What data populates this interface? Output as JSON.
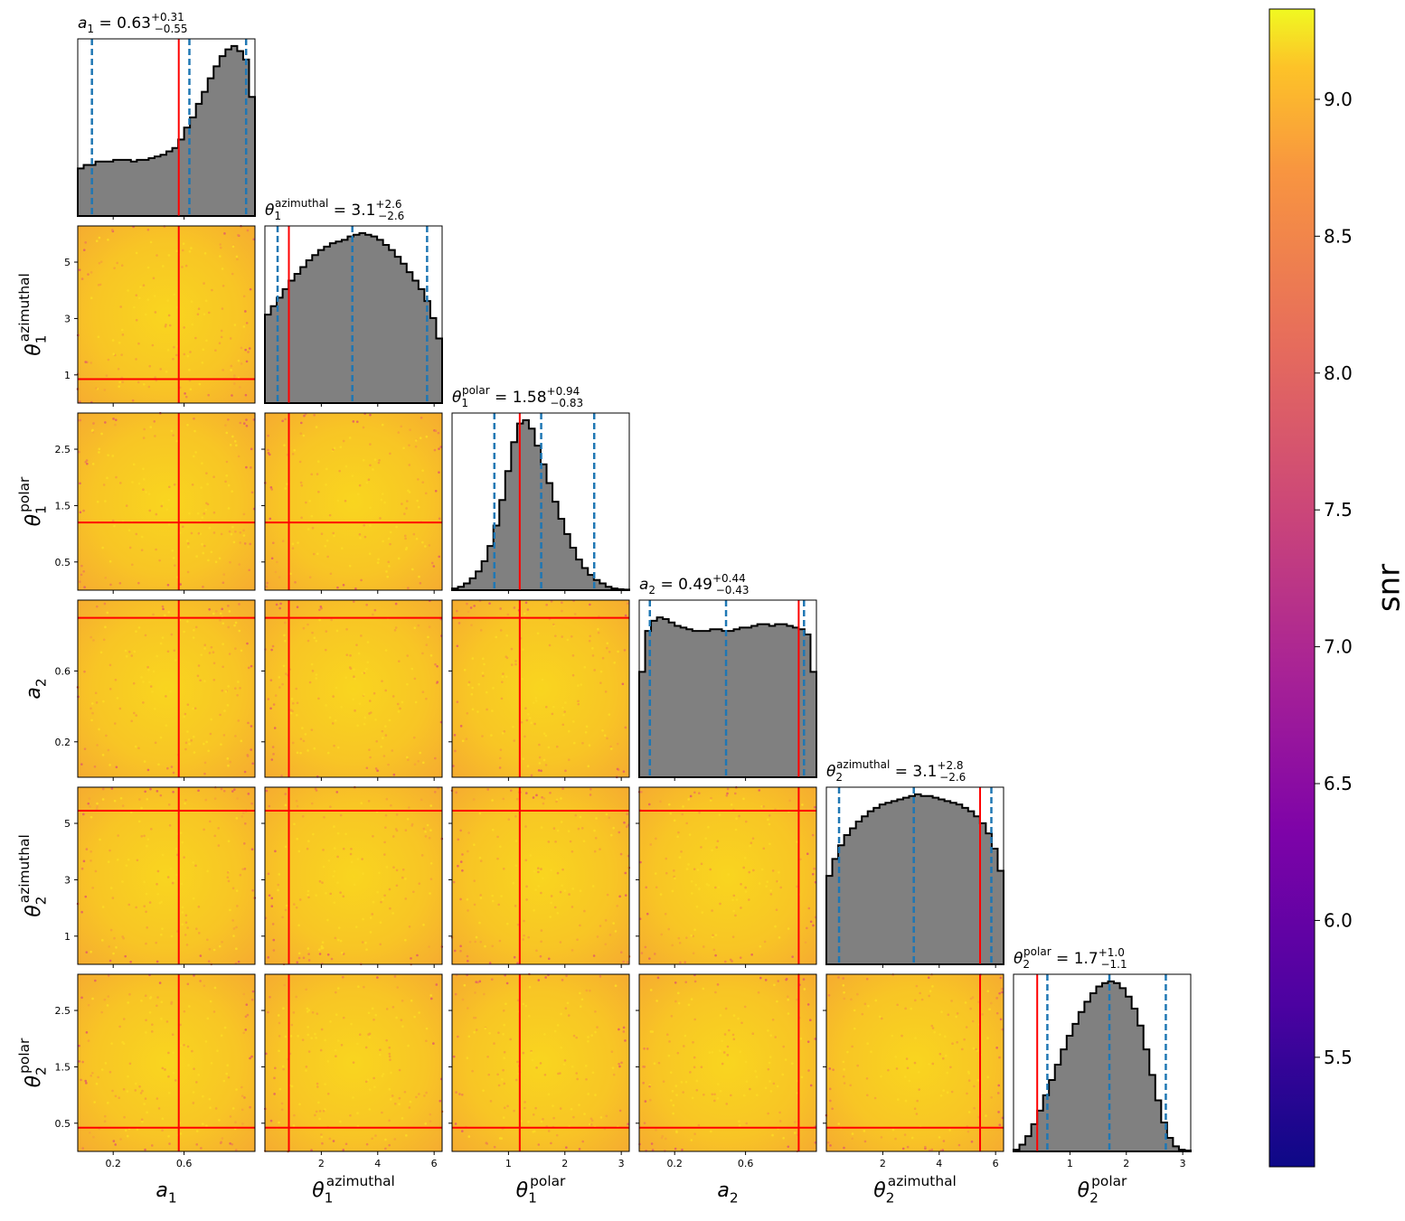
{
  "chart_data": {
    "type": "scatter",
    "subtype": "corner plot (1D histograms on diagonal, 2D scatter coloured by snr below diagonal)",
    "parameters": [
      {
        "sym": "a",
        "sub": "1",
        "sup": "",
        "range": [
          0,
          1
        ],
        "ticks": [
          0.2,
          0.6
        ],
        "title_value": "0.63",
        "title_plus": "+0.31",
        "title_minus": "−0.55",
        "truth": 0.57,
        "quantiles": [
          0.08,
          0.63,
          0.95
        ]
      },
      {
        "sym": "θ",
        "sub": "1",
        "sup": "azimuthal",
        "range": [
          0,
          6.283
        ],
        "ticks": [
          1,
          3,
          5
        ],
        "xticks": [
          2,
          4,
          6
        ],
        "title_value": "3.1",
        "title_plus": "+2.6",
        "title_minus": "−2.6",
        "truth": 0.85,
        "quantiles": [
          0.45,
          3.1,
          5.75
        ]
      },
      {
        "sym": "θ",
        "sub": "1",
        "sup": "polar",
        "range": [
          0,
          3.1416
        ],
        "ticks": [
          0.5,
          1.5,
          2.5
        ],
        "xticks": [
          1,
          2,
          3
        ],
        "title_value": "1.58",
        "title_plus": "+0.94",
        "title_minus": "−0.83",
        "truth": 1.2,
        "quantiles": [
          0.75,
          1.58,
          2.52
        ]
      },
      {
        "sym": "a",
        "sub": "2",
        "sup": "",
        "range": [
          0,
          1
        ],
        "ticks": [
          0.2,
          0.6
        ],
        "title_value": "0.49",
        "title_plus": "+0.44",
        "title_minus": "−0.43",
        "truth": 0.9,
        "quantiles": [
          0.06,
          0.49,
          0.93
        ]
      },
      {
        "sym": "θ",
        "sub": "2",
        "sup": "azimuthal",
        "range": [
          0,
          6.283
        ],
        "ticks": [
          1,
          3,
          5
        ],
        "xticks": [
          2,
          4,
          6
        ],
        "title_value": "3.1",
        "title_plus": "+2.8",
        "title_minus": "−2.6",
        "truth": 5.45,
        "quantiles": [
          0.45,
          3.1,
          5.85
        ]
      },
      {
        "sym": "θ",
        "sub": "2",
        "sup": "polar",
        "range": [
          0,
          3.1416
        ],
        "ticks": [
          0.5,
          1.5,
          2.5
        ],
        "xticks": [
          1,
          2,
          3
        ],
        "title_value": "1.7",
        "title_plus": "+1.0",
        "title_minus": "−1.1",
        "truth": 0.42,
        "quantiles": [
          0.6,
          1.7,
          2.7
        ]
      }
    ],
    "histograms": [
      [
        0.28,
        0.3,
        0.3,
        0.32,
        0.32,
        0.32,
        0.33,
        0.33,
        0.33,
        0.32,
        0.33,
        0.33,
        0.34,
        0.35,
        0.36,
        0.38,
        0.4,
        0.45,
        0.52,
        0.58,
        0.66,
        0.73,
        0.81,
        0.88,
        0.94,
        0.98,
        1.0,
        0.97,
        0.92,
        0.7
      ],
      [
        0.52,
        0.57,
        0.62,
        0.67,
        0.72,
        0.76,
        0.8,
        0.84,
        0.87,
        0.9,
        0.92,
        0.94,
        0.95,
        0.96,
        0.98,
        0.99,
        1.0,
        0.99,
        0.98,
        0.96,
        0.93,
        0.9,
        0.86,
        0.82,
        0.77,
        0.72,
        0.67,
        0.6,
        0.5,
        0.38
      ],
      [
        0.01,
        0.02,
        0.04,
        0.07,
        0.11,
        0.17,
        0.26,
        0.38,
        0.53,
        0.7,
        0.87,
        0.98,
        1.0,
        0.95,
        0.85,
        0.74,
        0.63,
        0.52,
        0.42,
        0.33,
        0.25,
        0.18,
        0.13,
        0.09,
        0.06,
        0.04,
        0.02,
        0.01,
        0.005,
        0.003
      ],
      [
        0.62,
        0.86,
        0.92,
        0.94,
        0.93,
        0.91,
        0.89,
        0.88,
        0.87,
        0.86,
        0.86,
        0.86,
        0.87,
        0.87,
        0.86,
        0.86,
        0.87,
        0.88,
        0.88,
        0.89,
        0.9,
        0.9,
        0.89,
        0.9,
        0.9,
        0.89,
        0.88,
        0.87,
        0.84,
        0.62
      ],
      [
        0.52,
        0.62,
        0.7,
        0.76,
        0.8,
        0.84,
        0.87,
        0.9,
        0.92,
        0.94,
        0.95,
        0.96,
        0.97,
        0.98,
        0.99,
        1.0,
        0.99,
        0.99,
        0.98,
        0.97,
        0.96,
        0.95,
        0.94,
        0.92,
        0.9,
        0.87,
        0.83,
        0.77,
        0.68,
        0.55
      ],
      [
        0.01,
        0.04,
        0.09,
        0.16,
        0.24,
        0.33,
        0.42,
        0.51,
        0.6,
        0.68,
        0.75,
        0.82,
        0.88,
        0.93,
        0.97,
        0.99,
        1.0,
        0.99,
        0.96,
        0.91,
        0.84,
        0.74,
        0.6,
        0.45,
        0.3,
        0.17,
        0.08,
        0.03,
        0.01,
        0.005
      ]
    ],
    "colorbar": {
      "label": "snr",
      "min": 5.1,
      "max": 9.33,
      "ticks": [
        "5.5",
        "6.0",
        "6.5",
        "7.0",
        "7.5",
        "8.0",
        "8.5",
        "9.0"
      ],
      "colormap": "plasma"
    },
    "colors": {
      "hist_fill": "#808080",
      "hist_edge": "#000000",
      "truth_line": "#ff0000",
      "quantile_line": "#1f77b4"
    },
    "legend": "none",
    "grid": false
  }
}
